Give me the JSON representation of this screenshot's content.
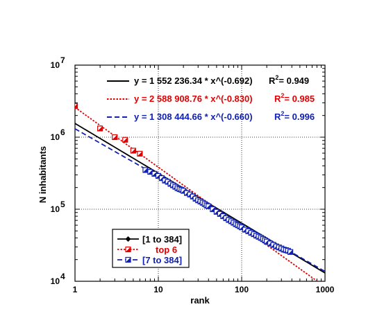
{
  "chart_data": {
    "type": "scatter",
    "title": "",
    "xlabel": "rank",
    "ylabel": "N  inhabitants",
    "xscale": "log",
    "yscale": "log",
    "xlim": [
      1,
      1000
    ],
    "ylim": [
      10000,
      10000000
    ],
    "grid": true,
    "x_tick_labels": [
      {
        "value": 1,
        "label": "1"
      },
      {
        "value": 10,
        "label": "10"
      },
      {
        "value": 100,
        "label": "100"
      },
      {
        "value": 1000,
        "label": "1000"
      }
    ],
    "y_tick_labels": [
      {
        "value": 10000,
        "base": "10",
        "exp": "4"
      },
      {
        "value": 100000,
        "base": "10",
        "exp": "5"
      },
      {
        "value": 1000000,
        "base": "10",
        "exp": "6"
      },
      {
        "value": 10000000,
        "base": "10",
        "exp": "7"
      }
    ],
    "legend_position": "bottom-left",
    "fits": [
      {
        "label": "[1 to 384]",
        "color": "#000000",
        "dash": "solid",
        "a": 1552236.34,
        "b": -0.692,
        "xrange": [
          1,
          1000
        ],
        "equation": "y = 1 552 236.34 * x^(-0.692)",
        "r2_value": "= 0.949"
      },
      {
        "label": "top 6",
        "color": "#e00000",
        "dash": "dotted",
        "a": 2588908.76,
        "b": -0.83,
        "xrange": [
          1,
          1000
        ],
        "equation": "y =  2 588 908.76 * x^(-0.830)",
        "r2_value": "= 0.985"
      },
      {
        "label": "[7 to 384]",
        "color": "#1020b0",
        "dash": "dashed",
        "a": 1308444.66,
        "b": -0.66,
        "xrange": [
          1,
          1000
        ],
        "equation": "y =  1 308 444.66 * x^(-0.660)",
        "r2_value": "= 0.996"
      }
    ],
    "r2_prefix": "R",
    "r2_sup": "2",
    "series": [
      {
        "name": "top 6",
        "color": "#e00000",
        "marker": "square",
        "x": [
          1,
          2,
          3,
          4,
          5,
          6
        ],
        "y": [
          2700000,
          1320000,
          1000000,
          920000,
          650000,
          590000
        ]
      },
      {
        "name": "[7 to 384]",
        "color": "#1020b0",
        "marker": "square",
        "x": [
          7,
          8,
          9,
          10,
          11,
          12,
          13,
          14,
          15,
          16,
          17,
          18,
          19,
          20,
          22,
          24,
          26,
          28,
          30,
          32,
          34,
          36,
          38,
          40,
          45,
          50,
          55,
          60,
          65,
          70,
          75,
          80,
          85,
          90,
          95,
          100,
          110,
          120,
          130,
          140,
          150,
          160,
          170,
          180,
          190,
          200,
          220,
          240,
          260,
          280,
          300,
          320,
          340,
          360,
          384
        ],
        "y": [
          350000,
          330000,
          310000,
          290000,
          270000,
          250000,
          240000,
          225000,
          215000,
          205000,
          196000,
          190000,
          186000,
          180000,
          168000,
          160000,
          150000,
          140000,
          133000,
          128000,
          123000,
          118000,
          113000,
          110000,
          100000,
          92000,
          86000,
          80000,
          75000,
          71000,
          68000,
          65000,
          62000,
          60000,
          58000,
          56000,
          52000,
          49500,
          47000,
          45000,
          43000,
          41500,
          40000,
          38500,
          37000,
          35500,
          33500,
          32000,
          30500,
          29500,
          28500,
          27500,
          27000,
          26500,
          25500
        ]
      }
    ]
  }
}
